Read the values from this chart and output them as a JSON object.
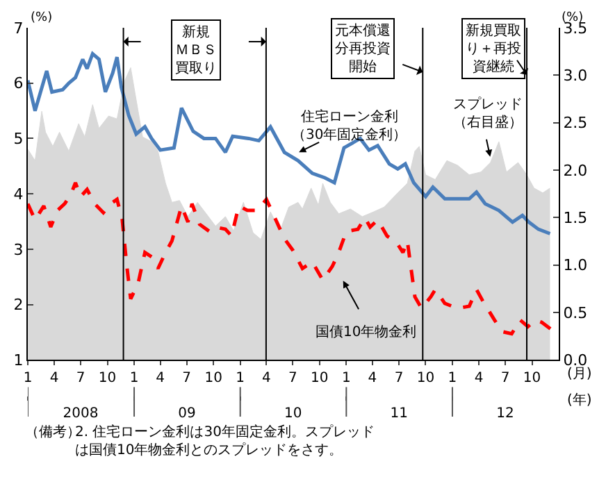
{
  "chart_data": {
    "type": "line",
    "ylabel": "(%)",
    "y2label": "(%)",
    "xlabel": "(月)",
    "x2label": "(年)",
    "xlim": [
      "2008-01-01",
      "2013-01-01"
    ],
    "xticks": [
      {
        "value": "2008-01",
        "label": "1"
      },
      {
        "value": "2008-04",
        "label": "4"
      },
      {
        "value": "2008-07",
        "label": "7"
      },
      {
        "value": "2008-10",
        "label": "10"
      },
      {
        "value": "2009-01",
        "label": "1"
      },
      {
        "value": "2009-04",
        "label": "4"
      },
      {
        "value": "2009-07",
        "label": "7"
      },
      {
        "value": "2009-10",
        "label": "10"
      },
      {
        "value": "2010-01",
        "label": "1"
      },
      {
        "value": "2010-04",
        "label": "4"
      },
      {
        "value": "2010-07",
        "label": "7"
      },
      {
        "value": "2010-10",
        "label": "10"
      },
      {
        "value": "2011-01",
        "label": "1"
      },
      {
        "value": "2011-04",
        "label": "4"
      },
      {
        "value": "2011-07",
        "label": "7"
      },
      {
        "value": "2011-10",
        "label": "10"
      },
      {
        "value": "2012-01",
        "label": "1"
      },
      {
        "value": "2012-04",
        "label": "4"
      },
      {
        "value": "2012-07",
        "label": "7"
      },
      {
        "value": "2012-10",
        "label": "10"
      }
    ],
    "x2lim": [
      "2008-01-01",
      "2013-01-01"
    ],
    "x2ticks": [
      {
        "value": "2008",
        "label": "2008"
      },
      {
        "value": "2009",
        "label": "09"
      },
      {
        "value": "2010",
        "label": "10"
      },
      {
        "value": "2011",
        "label": "11"
      },
      {
        "value": "2012",
        "label": "12"
      }
    ],
    "ylim": [
      1,
      7
    ],
    "yticks": [
      1,
      2,
      3,
      4,
      5,
      6,
      7
    ],
    "y2lim": [
      0,
      3.5
    ],
    "y2ticks": [
      {
        "value": 0,
        "label": "0.0"
      },
      {
        "value": 0.5,
        "label": "0.5"
      },
      {
        "value": 1,
        "label": "1.0"
      },
      {
        "value": 1.5,
        "label": "1.5"
      },
      {
        "value": 2,
        "label": "2.0"
      },
      {
        "value": 2.5,
        "label": "2.5"
      },
      {
        "value": 3,
        "label": "3.0"
      },
      {
        "value": 3.5,
        "label": "3.5"
      }
    ],
    "grid": false,
    "legend": false,
    "marker": "none",
    "series": [
      {
        "name": "スプレッド（右目盛）",
        "type": "area",
        "axis": "y2",
        "color": "#d9d9d9",
        "x": [
          "2008-01-01",
          "2008-01-26",
          "2008-02-18",
          "2008-03-02",
          "2008-03-27",
          "2008-04-19",
          "2008-05-21",
          "2008-06-24",
          "2008-07-15",
          "2008-08-11",
          "2008-09-02",
          "2008-10-05",
          "2008-11-03",
          "2008-11-29",
          "2008-12-20",
          "2009-01-08",
          "2009-01-30",
          "2009-03-02",
          "2009-03-24",
          "2009-04-19",
          "2009-05-11",
          "2009-06-06",
          "2009-07-05",
          "2009-08-07",
          "2009-09-06",
          "2009-10-08",
          "2009-11-11",
          "2009-12-09",
          "2010-01-12",
          "2010-02-14",
          "2010-03-13",
          "2010-04-15",
          "2010-05-18",
          "2010-06-17",
          "2010-07-19",
          "2010-08-03",
          "2010-09-02",
          "2010-09-27",
          "2010-10-12",
          "2010-11-07",
          "2010-12-06",
          "2011-01-15",
          "2011-02-25",
          "2011-04-05",
          "2011-05-11",
          "2011-06-27",
          "2011-07-30",
          "2011-08-25",
          "2011-09-09",
          "2011-10-01",
          "2011-11-03",
          "2011-12-13",
          "2012-01-19",
          "2012-02-28",
          "2012-04-08",
          "2012-05-11",
          "2012-06-09",
          "2012-07-05",
          "2012-08-14",
          "2012-09-13",
          "2012-10-08",
          "2012-11-07",
          "2012-12-02"
        ],
        "values": [
          2.22,
          2.1,
          2.62,
          2.4,
          2.25,
          2.4,
          2.2,
          2.49,
          2.35,
          2.69,
          2.44,
          2.57,
          2.54,
          2.94,
          3.08,
          2.74,
          2.35,
          2.3,
          2.2,
          1.86,
          1.66,
          1.68,
          1.51,
          1.66,
          1.54,
          1.41,
          1.51,
          1.36,
          1.66,
          1.34,
          1.27,
          1.56,
          1.36,
          1.61,
          1.66,
          1.59,
          1.81,
          1.63,
          1.86,
          1.66,
          1.54,
          1.59,
          1.51,
          1.56,
          1.61,
          1.76,
          1.86,
          2.2,
          2.25,
          1.95,
          1.9,
          2.1,
          2.05,
          1.95,
          1.98,
          2.08,
          2.3,
          1.98,
          2.08,
          1.95,
          1.81,
          1.76,
          1.81
        ]
      },
      {
        "name": "住宅ローン金利（30年固定金利）",
        "line_style": "solid",
        "color": "#4a7ebb",
        "x": [
          "2008-01-01",
          "2008-01-26",
          "2008-03-06",
          "2008-03-24",
          "2008-04-30",
          "2008-05-21",
          "2008-06-13",
          "2008-07-08",
          "2008-07-23",
          "2008-08-11",
          "2008-09-02",
          "2008-09-24",
          "2008-10-19",
          "2008-11-03",
          "2008-11-18",
          "2008-12-13",
          "2009-01-08",
          "2009-02-07",
          "2009-03-02",
          "2009-04-01",
          "2009-05-18",
          "2009-06-13",
          "2009-07-23",
          "2009-08-29",
          "2009-10-08",
          "2009-11-11",
          "2009-12-06",
          "2010-01-30",
          "2010-03-06",
          "2010-04-15",
          "2010-06-02",
          "2010-07-19",
          "2010-09-06",
          "2010-10-19",
          "2010-11-21",
          "2010-12-24",
          "2011-02-18",
          "2011-03-20",
          "2011-04-19",
          "2011-05-29",
          "2011-06-27",
          "2011-07-23",
          "2011-08-21",
          "2011-10-01",
          "2011-10-26",
          "2011-12-06",
          "2012-01-19",
          "2012-02-28",
          "2012-03-24",
          "2012-04-23",
          "2012-06-09",
          "2012-07-26",
          "2012-08-29",
          "2012-09-20",
          "2012-10-23",
          "2012-12-02"
        ],
        "values": [
          6.05,
          5.5,
          6.22,
          5.84,
          5.88,
          6.0,
          6.1,
          6.43,
          6.26,
          6.53,
          6.43,
          5.84,
          6.18,
          6.47,
          5.92,
          5.42,
          5.08,
          5.21,
          5.0,
          4.79,
          4.83,
          5.55,
          5.13,
          5.0,
          5.0,
          4.75,
          5.04,
          5.0,
          4.96,
          5.21,
          4.75,
          4.6,
          4.37,
          4.29,
          4.2,
          4.83,
          5.0,
          4.79,
          4.87,
          4.54,
          4.45,
          4.54,
          4.2,
          3.95,
          4.12,
          3.91,
          3.91,
          3.91,
          4.03,
          3.82,
          3.7,
          3.49,
          3.61,
          3.49,
          3.36,
          3.28
        ]
      },
      {
        "name": "国債10年物金利",
        "line_style": "dashed",
        "color": "#ff0000",
        "x": [
          "2008-01-01",
          "2008-01-26",
          "2008-02-25",
          "2008-03-20",
          "2008-04-12",
          "2008-05-07",
          "2008-05-29",
          "2008-06-13",
          "2008-07-01",
          "2008-07-23",
          "2008-08-18",
          "2008-09-17",
          "2008-10-12",
          "2008-11-03",
          "2008-11-21",
          "2008-12-06",
          "2008-12-20",
          "2009-01-15",
          "2009-02-07",
          "2009-03-02",
          "2009-03-24",
          "2009-04-19",
          "2009-05-11",
          "2009-06-13",
          "2009-07-05",
          "2009-07-19",
          "2009-08-14",
          "2009-09-17",
          "2009-10-08",
          "2009-11-11",
          "2009-12-02",
          "2009-12-27",
          "2010-01-26",
          "2010-02-28",
          "2010-04-01",
          "2010-04-30",
          "2010-06-02",
          "2010-07-01",
          "2010-08-03",
          "2010-09-06",
          "2010-10-12",
          "2010-11-14",
          "2010-12-06",
          "2011-01-01",
          "2011-02-10",
          "2011-03-06",
          "2011-03-24",
          "2011-04-19",
          "2011-05-21",
          "2011-06-24",
          "2011-07-15",
          "2011-07-30",
          "2011-08-25",
          "2011-09-17",
          "2011-10-19",
          "2011-11-03",
          "2011-12-06",
          "2012-01-19",
          "2012-02-28",
          "2012-03-24",
          "2012-04-15",
          "2012-05-25",
          "2012-06-20",
          "2012-07-23",
          "2012-08-21",
          "2012-09-17",
          "2012-10-12",
          "2012-11-03",
          "2012-12-06"
        ],
        "values": [
          3.82,
          3.53,
          3.78,
          3.4,
          3.7,
          3.82,
          4.0,
          4.2,
          3.95,
          4.08,
          3.82,
          3.66,
          3.82,
          3.9,
          3.53,
          2.73,
          2.1,
          2.39,
          2.94,
          2.86,
          2.65,
          2.94,
          3.15,
          3.78,
          3.49,
          3.82,
          3.45,
          3.32,
          3.4,
          3.36,
          3.24,
          3.78,
          3.7,
          3.7,
          3.9,
          3.57,
          3.19,
          2.98,
          2.65,
          2.77,
          2.44,
          2.69,
          2.94,
          3.32,
          3.36,
          3.57,
          3.4,
          3.53,
          3.24,
          3.11,
          2.94,
          3.15,
          2.14,
          1.93,
          2.14,
          2.27,
          2.02,
          1.93,
          1.97,
          2.27,
          2.06,
          1.72,
          1.51,
          1.47,
          1.72,
          1.6,
          1.72,
          1.68,
          1.55
        ]
      }
    ],
    "ref_lines": [
      {
        "axis": "x",
        "value": "2008-11-25",
        "color": "#000000"
      },
      {
        "axis": "x",
        "value": "2010-03-31",
        "color": "#000000"
      },
      {
        "axis": "x",
        "value": "2011-09-21",
        "color": "#000000"
      },
      {
        "axis": "x",
        "value": "2012-09-13",
        "color": "#000000"
      }
    ],
    "annotations": [
      "新規ＭＢＳ買取り",
      "元本償還分再投資開始",
      "新規買取り＋再投資継続",
      "（備考）",
      "2. 住宅ローン金利は30年固定金利。スプレッドは国債10年物金利とのスプレッドをさす。"
    ]
  }
}
